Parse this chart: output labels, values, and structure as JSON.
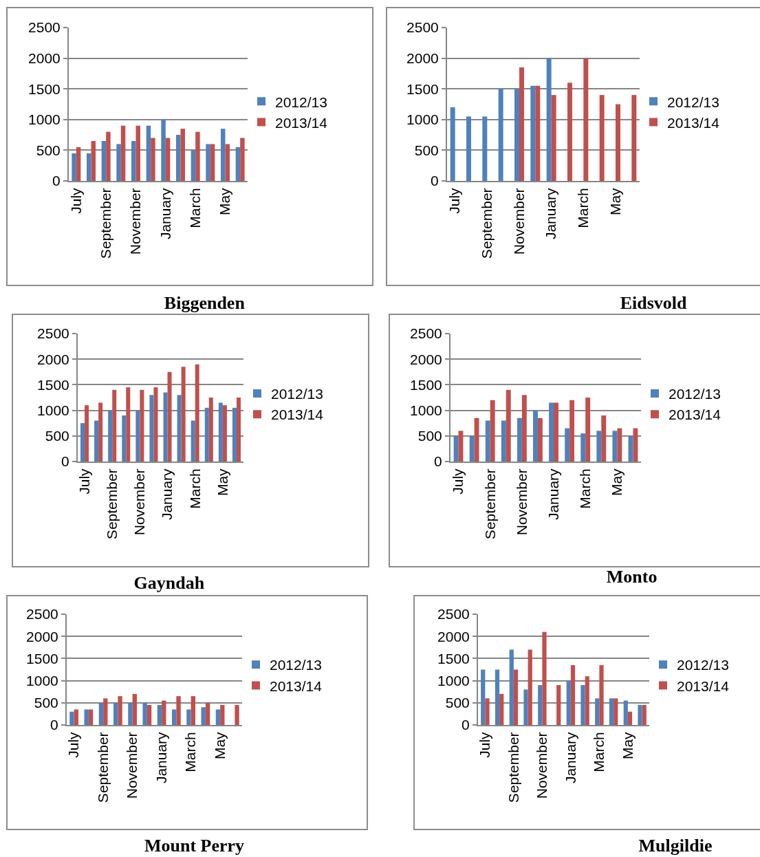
{
  "chart_data": [
    {
      "type": "bar",
      "title": "Biggenden",
      "categories": [
        "July",
        null,
        "September",
        null,
        "November",
        null,
        "January",
        null,
        "March",
        null,
        "May",
        null
      ],
      "ylim": [
        0,
        2500
      ],
      "yticks": [
        0,
        500,
        1000,
        1500,
        2000,
        2500
      ],
      "grid": "y",
      "legend": "right",
      "series": [
        {
          "name": "2012/13",
          "color": "#4f81bd",
          "values": [
            450,
            450,
            650,
            600,
            650,
            900,
            1000,
            750,
            500,
            600,
            850,
            550
          ]
        },
        {
          "name": "2013/14",
          "color": "#c0504d",
          "values": [
            550,
            650,
            800,
            900,
            900,
            700,
            700,
            850,
            800,
            600,
            600,
            700
          ]
        }
      ]
    },
    {
      "type": "bar",
      "title": "Eidsvold",
      "categories": [
        "July",
        null,
        "September",
        null,
        "November",
        null,
        "January",
        null,
        "March",
        null,
        "May",
        null
      ],
      "ylim": [
        0,
        2500
      ],
      "yticks": [
        0,
        500,
        1000,
        1500,
        2000,
        2500
      ],
      "grid": "y",
      "legend": "right",
      "series": [
        {
          "name": "2012/13",
          "color": "#4f81bd",
          "values": [
            1200,
            1050,
            1050,
            1500,
            1500,
            1550,
            2000,
            null,
            null,
            null,
            null,
            null
          ]
        },
        {
          "name": "2013/14",
          "color": "#c0504d",
          "values": [
            null,
            null,
            null,
            null,
            1850,
            1550,
            1400,
            1600,
            2000,
            1400,
            1250,
            1400
          ]
        }
      ]
    },
    {
      "type": "bar",
      "title": "Gayndah",
      "categories": [
        "July",
        null,
        "September",
        null,
        "November",
        null,
        "January",
        null,
        "March",
        null,
        "May",
        null
      ],
      "ylim": [
        0,
        2500
      ],
      "yticks": [
        0,
        500,
        1000,
        1500,
        2000,
        2500
      ],
      "grid": "y",
      "legend": "right",
      "series": [
        {
          "name": "2012/13",
          "color": "#4f81bd",
          "values": [
            750,
            800,
            1000,
            900,
            1000,
            1300,
            1350,
            1300,
            800,
            1050,
            1150,
            1050
          ]
        },
        {
          "name": "2013/14",
          "color": "#c0504d",
          "values": [
            1100,
            1150,
            1400,
            1450,
            1400,
            1450,
            1750,
            1850,
            1900,
            1250,
            1100,
            1250
          ]
        }
      ]
    },
    {
      "type": "bar",
      "title": "Monto",
      "categories": [
        "July",
        null,
        "September",
        null,
        "November",
        null,
        "January",
        null,
        "March",
        null,
        "May",
        null
      ],
      "ylim": [
        0,
        2500
      ],
      "yticks": [
        0,
        500,
        1000,
        1500,
        2000,
        2500
      ],
      "grid": "y",
      "legend": "right",
      "series": [
        {
          "name": "2012/13",
          "color": "#4f81bd",
          "values": [
            500,
            500,
            800,
            800,
            850,
            1000,
            1150,
            650,
            550,
            600,
            600,
            500
          ]
        },
        {
          "name": "2013/14",
          "color": "#c0504d",
          "values": [
            600,
            850,
            1200,
            1400,
            1300,
            850,
            1150,
            1200,
            1250,
            900,
            650,
            650
          ]
        }
      ]
    },
    {
      "type": "bar",
      "title": "Mount Perry",
      "categories": [
        "July",
        null,
        "September",
        null,
        "November",
        null,
        "January",
        null,
        "March",
        null,
        "May",
        null
      ],
      "ylim": [
        0,
        2500
      ],
      "yticks": [
        0,
        500,
        1000,
        1500,
        2000,
        2500
      ],
      "grid": "y",
      "legend": "right",
      "series": [
        {
          "name": "2012/13",
          "color": "#4f81bd",
          "values": [
            300,
            350,
            500,
            500,
            500,
            500,
            450,
            350,
            350,
            400,
            350,
            null
          ]
        },
        {
          "name": "2013/14",
          "color": "#c0504d",
          "values": [
            350,
            350,
            600,
            650,
            700,
            450,
            550,
            650,
            650,
            500,
            450,
            450
          ]
        }
      ]
    },
    {
      "type": "bar",
      "title": "Mulgildie",
      "categories": [
        "July",
        null,
        "September",
        null,
        "November",
        null,
        "January",
        null,
        "March",
        null,
        "May",
        null
      ],
      "ylim": [
        0,
        2500
      ],
      "yticks": [
        0,
        500,
        1000,
        1500,
        2000,
        2500
      ],
      "grid": "y",
      "legend": "right",
      "series": [
        {
          "name": "2012/13",
          "color": "#4f81bd",
          "values": [
            1250,
            1250,
            1700,
            800,
            900,
            null,
            1000,
            900,
            600,
            600,
            550,
            450
          ]
        },
        {
          "name": "2013/14",
          "color": "#c0504d",
          "values": [
            600,
            700,
            1250,
            1700,
            2100,
            900,
            1350,
            1100,
            1350,
            600,
            300,
            450
          ]
        }
      ]
    }
  ]
}
